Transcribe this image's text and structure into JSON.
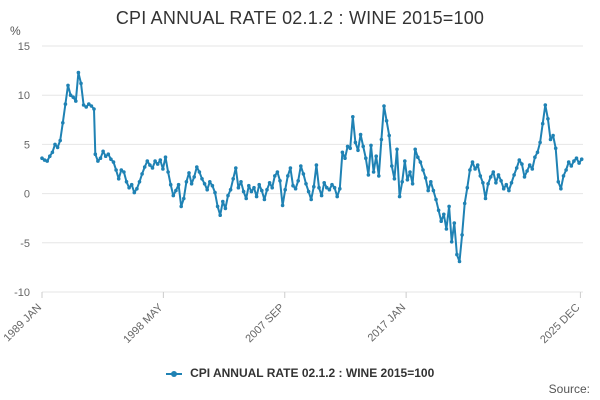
{
  "header": {
    "title": "CPI ANNUAL RATE 02.1.2 : WINE 2015=100",
    "unit": "%"
  },
  "footer": {
    "source": "Source:"
  },
  "colors": {
    "series": "#1f82b4",
    "grid": "#e6e6e6",
    "axis": "#cccccc"
  },
  "chart_data": {
    "type": "line",
    "title": "CPI ANNUAL RATE 02.1.2 : WINE 2015=100",
    "ylabel": "%",
    "ylim": [
      -10,
      15
    ],
    "yticks": [
      15,
      10,
      5,
      0,
      -5,
      -10
    ],
    "xlim": [
      1989.0,
      2025.917
    ],
    "xtick_labels": [
      "1989 JAN",
      "1998 MAY",
      "2007 SEP",
      "2017 JAN",
      "2025 DEC"
    ],
    "xtick_values": [
      1989.0,
      1998.333,
      2007.667,
      2017.0,
      2025.917
    ],
    "grid": true,
    "legend_position": "bottom",
    "series": [
      {
        "name": "CPI ANNUAL RATE 02.1.2 : WINE 2015=100",
        "points": [
          [
            1989.0,
            3.6
          ],
          [
            1989.2,
            3.4
          ],
          [
            1989.4,
            3.3
          ],
          [
            1989.6,
            3.8
          ],
          [
            1989.8,
            4.2
          ],
          [
            1990.0,
            5.0
          ],
          [
            1990.2,
            4.7
          ],
          [
            1990.4,
            5.4
          ],
          [
            1990.6,
            7.2
          ],
          [
            1990.8,
            9.1
          ],
          [
            1991.0,
            11.0
          ],
          [
            1991.2,
            10.0
          ],
          [
            1991.4,
            9.8
          ],
          [
            1991.6,
            9.4
          ],
          [
            1991.8,
            12.3
          ],
          [
            1992.0,
            11.2
          ],
          [
            1992.2,
            9.0
          ],
          [
            1992.4,
            8.8
          ],
          [
            1992.6,
            9.1
          ],
          [
            1992.8,
            8.9
          ],
          [
            1993.0,
            8.6
          ],
          [
            1993.1,
            4.0
          ],
          [
            1993.3,
            3.3
          ],
          [
            1993.5,
            3.6
          ],
          [
            1993.7,
            4.3
          ],
          [
            1993.9,
            3.8
          ],
          [
            1994.1,
            4.0
          ],
          [
            1994.3,
            3.5
          ],
          [
            1994.5,
            3.2
          ],
          [
            1994.7,
            2.4
          ],
          [
            1994.9,
            1.5
          ],
          [
            1995.1,
            2.4
          ],
          [
            1995.3,
            2.2
          ],
          [
            1995.5,
            1.2
          ],
          [
            1995.7,
            0.6
          ],
          [
            1995.9,
            0.9
          ],
          [
            1996.1,
            0.1
          ],
          [
            1996.3,
            0.5
          ],
          [
            1996.5,
            1.2
          ],
          [
            1996.7,
            2.0
          ],
          [
            1996.9,
            2.7
          ],
          [
            1997.1,
            3.3
          ],
          [
            1997.3,
            2.9
          ],
          [
            1997.5,
            2.6
          ],
          [
            1997.7,
            3.3
          ],
          [
            1997.9,
            3.0
          ],
          [
            1998.1,
            3.4
          ],
          [
            1998.3,
            2.5
          ],
          [
            1998.5,
            3.7
          ],
          [
            1998.7,
            2.2
          ],
          [
            1998.9,
            0.9
          ],
          [
            1999.1,
            -0.2
          ],
          [
            1999.3,
            0.3
          ],
          [
            1999.5,
            0.9
          ],
          [
            1999.7,
            -1.3
          ],
          [
            1999.9,
            -0.5
          ],
          [
            2000.1,
            1.2
          ],
          [
            2000.3,
            2.1
          ],
          [
            2000.5,
            1.0
          ],
          [
            2000.7,
            1.7
          ],
          [
            2000.9,
            2.7
          ],
          [
            2001.1,
            2.2
          ],
          [
            2001.3,
            1.5
          ],
          [
            2001.5,
            1.0
          ],
          [
            2001.7,
            0.4
          ],
          [
            2001.9,
            1.2
          ],
          [
            2002.1,
            0.8
          ],
          [
            2002.3,
            0.1
          ],
          [
            2002.5,
            -1.3
          ],
          [
            2002.7,
            -2.2
          ],
          [
            2002.9,
            -0.8
          ],
          [
            2003.1,
            -1.5
          ],
          [
            2003.3,
            -0.2
          ],
          [
            2003.5,
            0.4
          ],
          [
            2003.7,
            1.5
          ],
          [
            2003.9,
            2.6
          ],
          [
            2004.1,
            0.6
          ],
          [
            2004.3,
            1.2
          ],
          [
            2004.5,
            0.2
          ],
          [
            2004.7,
            -0.5
          ],
          [
            2004.9,
            0.8
          ],
          [
            2005.1,
            0.2
          ],
          [
            2005.3,
            0.6
          ],
          [
            2005.5,
            -0.3
          ],
          [
            2005.7,
            0.9
          ],
          [
            2005.9,
            0.3
          ],
          [
            2006.1,
            -0.6
          ],
          [
            2006.3,
            0.4
          ],
          [
            2006.5,
            1.1
          ],
          [
            2006.7,
            0.6
          ],
          [
            2006.9,
            1.8
          ],
          [
            2007.1,
            2.2
          ],
          [
            2007.3,
            1.3
          ],
          [
            2007.5,
            -1.2
          ],
          [
            2007.7,
            0.4
          ],
          [
            2007.9,
            1.8
          ],
          [
            2008.1,
            2.6
          ],
          [
            2008.3,
            0.8
          ],
          [
            2008.5,
            0.5
          ],
          [
            2008.7,
            1.3
          ],
          [
            2008.9,
            2.8
          ],
          [
            2009.1,
            2.0
          ],
          [
            2009.3,
            1.0
          ],
          [
            2009.5,
            0.2
          ],
          [
            2009.7,
            -0.6
          ],
          [
            2009.9,
            0.7
          ],
          [
            2010.1,
            2.9
          ],
          [
            2010.3,
            0.6
          ],
          [
            2010.5,
            -0.2
          ],
          [
            2010.7,
            1.1
          ],
          [
            2010.9,
            0.6
          ],
          [
            2011.1,
            0.4
          ],
          [
            2011.3,
            0.9
          ],
          [
            2011.5,
            0.6
          ],
          [
            2011.7,
            -0.3
          ],
          [
            2011.9,
            0.5
          ],
          [
            2012.1,
            4.2
          ],
          [
            2012.3,
            3.6
          ],
          [
            2012.5,
            4.8
          ],
          [
            2012.7,
            4.6
          ],
          [
            2012.9,
            7.8
          ],
          [
            2013.1,
            5.2
          ],
          [
            2013.3,
            4.4
          ],
          [
            2013.5,
            6.0
          ],
          [
            2013.7,
            4.8
          ],
          [
            2013.9,
            3.6
          ],
          [
            2014.1,
            1.9
          ],
          [
            2014.3,
            4.9
          ],
          [
            2014.5,
            2.2
          ],
          [
            2014.7,
            3.8
          ],
          [
            2014.9,
            1.8
          ],
          [
            2015.1,
            5.5
          ],
          [
            2015.3,
            8.9
          ],
          [
            2015.5,
            7.4
          ],
          [
            2015.7,
            5.9
          ],
          [
            2015.9,
            2.8
          ],
          [
            2016.1,
            1.5
          ],
          [
            2016.3,
            4.5
          ],
          [
            2016.5,
            -0.3
          ],
          [
            2016.7,
            1.2
          ],
          [
            2016.9,
            3.3
          ],
          [
            2017.1,
            1.4
          ],
          [
            2017.3,
            2.2
          ],
          [
            2017.5,
            1.0
          ],
          [
            2017.7,
            4.5
          ],
          [
            2017.9,
            3.7
          ],
          [
            2018.1,
            3.2
          ],
          [
            2018.3,
            2.4
          ],
          [
            2018.5,
            1.6
          ],
          [
            2018.7,
            0.3
          ],
          [
            2018.9,
            1.2
          ],
          [
            2019.1,
            0.3
          ],
          [
            2019.3,
            -0.6
          ],
          [
            2019.5,
            -1.7
          ],
          [
            2019.7,
            -2.8
          ],
          [
            2019.9,
            -2.1
          ],
          [
            2020.1,
            -3.6
          ],
          [
            2020.3,
            -1.3
          ],
          [
            2020.5,
            -4.9
          ],
          [
            2020.7,
            -3.0
          ],
          [
            2020.9,
            -6.2
          ],
          [
            2021.1,
            -6.9
          ],
          [
            2021.3,
            -4.2
          ],
          [
            2021.5,
            -1.0
          ],
          [
            2021.7,
            0.6
          ],
          [
            2021.9,
            2.4
          ],
          [
            2022.1,
            3.2
          ],
          [
            2022.3,
            2.5
          ],
          [
            2022.5,
            2.9
          ],
          [
            2022.7,
            1.8
          ],
          [
            2022.9,
            1.1
          ],
          [
            2023.1,
            -0.5
          ],
          [
            2023.3,
            1.0
          ],
          [
            2023.5,
            1.7
          ],
          [
            2023.7,
            2.2
          ],
          [
            2023.9,
            1.1
          ],
          [
            2024.1,
            1.9
          ],
          [
            2024.3,
            1.3
          ],
          [
            2024.5,
            0.5
          ],
          [
            2024.7,
            0.9
          ],
          [
            2024.9,
            0.3
          ],
          [
            2025.1,
            1.1
          ],
          [
            2025.3,
            1.9
          ],
          [
            2025.5,
            2.6
          ],
          [
            2025.7,
            3.4
          ],
          [
            2025.9,
            3.0
          ],
          [
            2026.1,
            1.7
          ],
          [
            2026.3,
            2.3
          ],
          [
            2026.5,
            2.9
          ],
          [
            2026.7,
            2.5
          ],
          [
            2026.9,
            3.7
          ],
          [
            2027.1,
            4.2
          ],
          [
            2027.3,
            5.2
          ],
          [
            2027.5,
            7.1
          ],
          [
            2027.7,
            9.0
          ],
          [
            2027.9,
            7.6
          ],
          [
            2028.1,
            5.5
          ],
          [
            2028.3,
            5.9
          ],
          [
            2028.5,
            4.6
          ],
          [
            2028.7,
            1.2
          ],
          [
            2028.9,
            0.5
          ],
          [
            2029.1,
            1.8
          ],
          [
            2029.3,
            2.4
          ],
          [
            2029.5,
            3.2
          ],
          [
            2029.7,
            2.8
          ],
          [
            2029.9,
            3.3
          ],
          [
            2030.1,
            3.6
          ],
          [
            2030.3,
            3.1
          ],
          [
            2030.5,
            3.5
          ]
        ]
      }
    ]
  }
}
